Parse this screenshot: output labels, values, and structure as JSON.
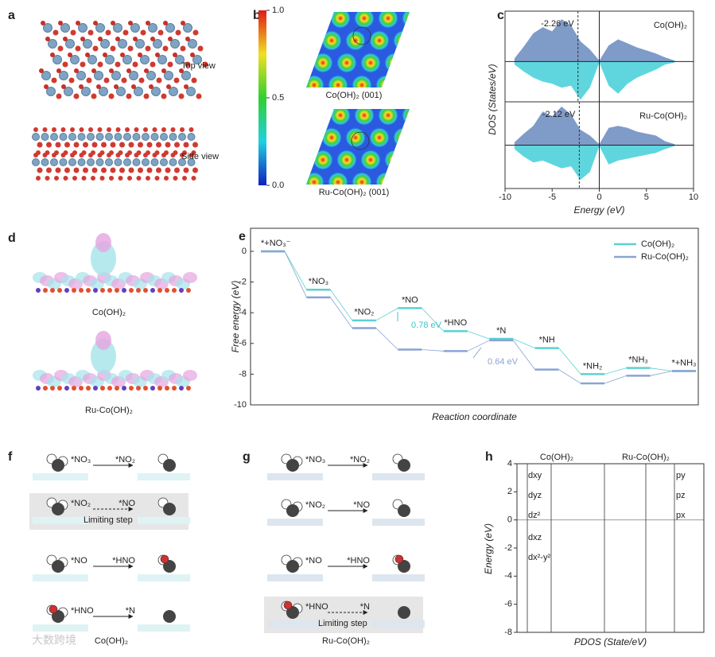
{
  "watermark": "大数跨境",
  "panels": {
    "a": {
      "label": "a",
      "top": "Top view",
      "side": "Side view"
    },
    "b": {
      "label": "b",
      "colorbar": {
        "range": [
          0,
          1
        ],
        "ticks": [
          {
            "value": 1,
            "label": "1.0"
          },
          0.5,
          {
            "value": 0,
            "label": "0.0"
          }
        ]
      },
      "captions": [
        "Co(OH)₂ (001)",
        "Ru-Co(OH)₂ (001)"
      ]
    },
    "c": {
      "label": "c"
    },
    "d": {
      "label": "d",
      "captions": [
        "Co(OH)₂",
        "Ru-Co(OH)₂"
      ]
    },
    "e": {
      "label": "e"
    },
    "f": {
      "label": "f",
      "caption": "Co(OH)₂",
      "steps": [
        {
          "from": "*NO₃",
          "to": "*NO₂"
        },
        {
          "from": "*NO₂",
          "to": "*NO",
          "note": "Limiting step"
        },
        {
          "from": "*NO",
          "to": "*HNO"
        },
        {
          "from": "*HNO",
          "to": "*N"
        }
      ]
    },
    "g": {
      "label": "g",
      "caption": "Ru-Co(OH)₂",
      "steps": [
        {
          "from": "*NO₃",
          "to": "*NO₂"
        },
        {
          "from": "*NO₂",
          "to": "*NO"
        },
        {
          "from": "*NO",
          "to": "*HNO"
        },
        {
          "from": "*HNO",
          "to": "*N",
          "note": "Limiting step"
        }
      ]
    },
    "h": {
      "label": "h"
    }
  },
  "chart_data": [
    {
      "type": "step",
      "xlabel": "Reaction coordinate",
      "ylabel": "Free energy (eV)",
      "categories": [
        "*+NO₃⁻",
        "*NO₃",
        "*NO₂",
        "*NO",
        "*HNO",
        "*N",
        "*NH",
        "*NH₂",
        "*NH₃",
        "*+NH₃"
      ],
      "series": [
        {
          "name": "Co(OH)₂",
          "color": "#5cd0d2",
          "values": [
            0,
            -2.5,
            -4.5,
            -3.7,
            -5.2,
            -5.7,
            -6.3,
            -8.0,
            -7.6,
            -7.8
          ]
        },
        {
          "name": "Ru-Co(OH)₂",
          "color": "#8aa3d4",
          "values": [
            0,
            -3.0,
            -5.0,
            -6.4,
            -6.5,
            -5.8,
            -7.7,
            -8.6,
            -8.1,
            -7.8
          ]
        }
      ],
      "ylim": [
        -10,
        1.5
      ],
      "yticks": [
        0,
        -2,
        -4,
        -6,
        -8,
        -10
      ],
      "legend": "upper right",
      "annotations": [
        {
          "text": "0.78 eV",
          "color": "#3cc4c6"
        },
        {
          "text": "0.64 eV",
          "color": "#8aa3d4"
        }
      ]
    },
    {
      "type": "area",
      "xlabel": "Energy (eV)",
      "ylabel": "DOS (States/eV)",
      "x": [
        -9,
        -8,
        -7,
        -6,
        -5,
        -4,
        -3,
        -2,
        -1,
        0,
        1,
        2,
        3,
        4,
        5,
        6,
        7,
        8
      ],
      "xlim": [
        -10,
        10
      ],
      "xticks": [
        -10,
        -5,
        0,
        5,
        10
      ],
      "subplots": [
        {
          "name": "Co(OH)₂",
          "annotation": "-2.26 eV",
          "marker": -2.26,
          "ylim": [
            -4,
            5
          ],
          "series": [
            {
              "color": "#7f9bc8",
              "values": [
                0.3,
                1.5,
                2.8,
                3.4,
                3.0,
                4.2,
                3.6,
                2.0,
                1.2,
                0.1,
                1.6,
                2.2,
                1.8,
                1.4,
                1.1,
                0.8,
                0.4,
                0.1
              ]
            },
            {
              "color": "#5fd6de",
              "values": [
                -0.3,
                -1.0,
                -1.6,
                -2.0,
                -2.2,
                -2.6,
                -2.4,
                -3.8,
                -2.6,
                -0.1,
                -2.4,
                -3.2,
                -2.2,
                -1.6,
                -1.2,
                -0.8,
                -0.3,
                -0.1
              ]
            }
          ]
        },
        {
          "name": "Ru-Co(OH)₂",
          "annotation": "-2.12 eV",
          "marker": -2.12,
          "ylim": [
            -4.5,
            4.5
          ],
          "series": [
            {
              "color": "#7f9bc8",
              "values": [
                0.3,
                1.2,
                2.0,
                3.5,
                3.0,
                4.0,
                3.2,
                1.6,
                1.0,
                0.1,
                1.8,
                2.0,
                1.8,
                1.4,
                1.2,
                1.0,
                0.4,
                0.1
              ]
            },
            {
              "color": "#5fd6de",
              "values": [
                -0.4,
                -1.2,
                -1.8,
                -1.6,
                -2.0,
                -2.4,
                -2.2,
                -3.6,
                -2.8,
                -0.1,
                -2.0,
                -1.6,
                -1.4,
                -1.2,
                -1.0,
                -0.8,
                -0.4,
                -0.1
              ]
            }
          ]
        }
      ]
    },
    {
      "type": "line",
      "xlabel": "PDOS (State/eV)",
      "ylabel": "Energy (eV)",
      "groups": [
        "Co(OH)₂",
        "Ru-Co(OH)₂"
      ],
      "orbital_labels": [
        [
          "dxy",
          "dyz",
          "dz²",
          "dxz",
          "dx²-y²"
        ],
        [
          "py",
          "pz",
          "px"
        ]
      ],
      "ylim": [
        -8,
        4
      ],
      "yticks": [
        4,
        2,
        0,
        -2,
        -4,
        -6,
        -8
      ]
    }
  ]
}
